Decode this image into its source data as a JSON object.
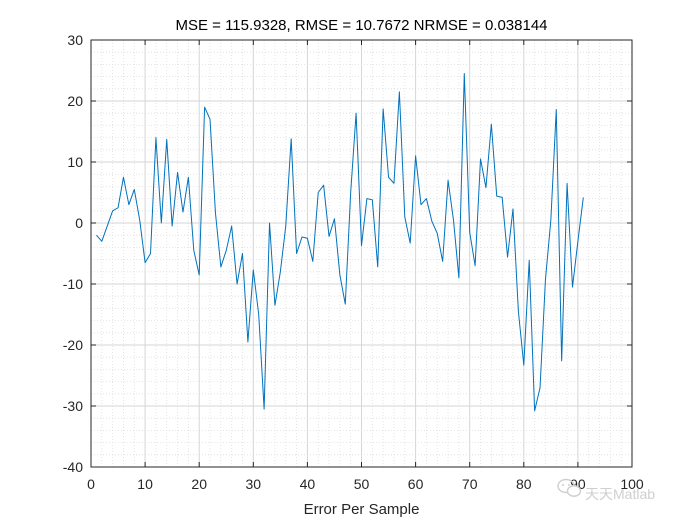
{
  "chart_data": {
    "type": "line",
    "title": "MSE = 115.9328, RMSE = 10.7672 NRMSE = 0.038144",
    "xlabel": "Error Per Sample",
    "ylabel": "",
    "xlim": [
      0,
      100
    ],
    "ylim": [
      -40,
      30
    ],
    "xticks": [
      0,
      10,
      20,
      30,
      40,
      50,
      60,
      70,
      80,
      90,
      100
    ],
    "yticks": [
      -40,
      -30,
      -20,
      -10,
      0,
      10,
      20,
      30
    ],
    "xtick_labels": [
      "0",
      "10",
      "20",
      "30",
      "40",
      "50",
      "60",
      "70",
      "80",
      "90",
      "100"
    ],
    "ytick_labels": [
      "-40",
      "-30",
      "-20",
      "-10",
      "0",
      "10",
      "20",
      "30"
    ],
    "grid": true,
    "minor_grid": true,
    "series": [
      {
        "color": "#0072BD",
        "x": [
          1,
          2,
          3,
          4,
          5,
          6,
          7,
          8,
          9,
          10,
          11,
          12,
          13,
          14,
          15,
          16,
          17,
          18,
          19,
          20,
          21,
          22,
          23,
          24,
          25,
          26,
          27,
          28,
          29,
          30,
          31,
          32,
          33,
          34,
          35,
          36,
          37,
          38,
          39,
          40,
          41,
          42,
          43,
          44,
          45,
          46,
          47,
          48,
          49,
          50,
          51,
          52,
          53,
          54,
          55,
          56,
          57,
          58,
          59,
          60,
          61,
          62,
          63,
          64,
          65,
          66,
          67,
          68,
          69,
          70,
          71,
          72,
          73,
          74,
          75,
          76,
          77,
          78,
          79,
          80,
          81,
          82,
          83,
          84,
          85,
          86,
          87,
          88,
          89,
          90,
          91
        ],
        "y": [
          -2,
          -3,
          -0.5,
          2,
          2.5,
          7.5,
          3,
          5.5,
          0.5,
          -6.5,
          -5,
          14,
          0,
          13.7,
          -0.5,
          8.3,
          1.8,
          7.5,
          -4.5,
          -8.5,
          19,
          17,
          1.7,
          -7.2,
          -4.5,
          -0.5,
          -10,
          -5,
          -19.5,
          -7.7,
          -15,
          -30.5,
          0,
          -13.5,
          -8,
          -0.5,
          13.8,
          -5,
          -2.3,
          -2.5,
          -6.3,
          5,
          6.2,
          -2.2,
          0.7,
          -8.5,
          -13.3,
          5,
          18,
          -3.7,
          4,
          3.8,
          -7.2,
          18.7,
          7.5,
          6.5,
          21.5,
          1,
          -3.3,
          11,
          3,
          4,
          0.3,
          -1.7,
          -6.3,
          7,
          0.5,
          -9,
          24.5,
          -1.5,
          -7,
          10.5,
          5.8,
          16.2,
          4.4,
          4.2,
          -5.6,
          2.3,
          -14.5,
          -23.3,
          -6.1,
          -30.8,
          -27,
          -9.3,
          0.5,
          18.6,
          -22.6,
          6.5,
          -10.5,
          -3,
          4.2
        ]
      }
    ]
  },
  "watermark": {
    "icon": "wechat-icon",
    "text": "天天Matlab"
  }
}
